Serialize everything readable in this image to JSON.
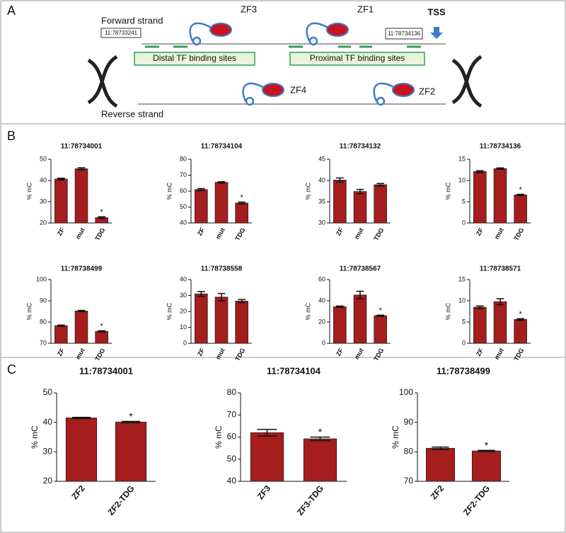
{
  "panels": [
    "A",
    "B",
    "C"
  ],
  "diagram": {
    "forward_strand": "Forward strand",
    "reverse_strand": "Reverse strand",
    "coord_left": "11:78733241",
    "coord_right": "11:78734136",
    "tss": "TSS",
    "distal": "Distal TF binding sites",
    "proximal": "Proximal TF binding sites",
    "proteins": [
      "ZF3",
      "ZF1",
      "ZF4",
      "ZF2"
    ]
  },
  "chart_data": [
    {
      "type": "bar",
      "title": "11:78734001",
      "ylabel": "% mC",
      "color": "#a51d1d",
      "categories": [
        "ZF",
        "mut",
        "TDG"
      ],
      "values": [
        40.7,
        45.5,
        22.5
      ],
      "errors": [
        0.4,
        0.5,
        0.4
      ],
      "significance": [
        null,
        null,
        "*"
      ],
      "ylim": [
        20,
        50
      ],
      "yticks": [
        20,
        30,
        40,
        50
      ]
    },
    {
      "type": "bar",
      "title": "11:78734104",
      "ylabel": "% mC",
      "color": "#a51d1d",
      "categories": [
        "ZF",
        "mut",
        "TDG"
      ],
      "values": [
        61,
        65.5,
        52.5
      ],
      "errors": [
        0.6,
        0.4,
        0.6
      ],
      "significance": [
        null,
        null,
        "*"
      ],
      "ylim": [
        40,
        80
      ],
      "yticks": [
        40,
        50,
        60,
        70,
        80
      ]
    },
    {
      "type": "bar",
      "title": "11:78734132",
      "ylabel": "% mC",
      "color": "#a51d1d",
      "categories": [
        "ZF",
        "mut",
        "TDG"
      ],
      "values": [
        40.1,
        37.4,
        39
      ],
      "errors": [
        0.5,
        0.5,
        0.3
      ],
      "ylim": [
        30,
        45
      ],
      "yticks": [
        30,
        35,
        40,
        45
      ]
    },
    {
      "type": "bar",
      "title": "11:78734136",
      "ylabel": "% mC",
      "color": "#a51d1d",
      "categories": [
        "ZF",
        "mut",
        "TDG"
      ],
      "values": [
        12.1,
        12.8,
        6.6
      ],
      "errors": [
        0.2,
        0.15,
        0.15
      ],
      "significance": [
        null,
        null,
        "*"
      ],
      "ylim": [
        0,
        15
      ],
      "yticks": [
        0,
        5,
        10,
        15
      ]
    },
    {
      "type": "bar",
      "title": "11:78738499",
      "ylabel": "% mC",
      "color": "#a51d1d",
      "categories": [
        "ZF",
        "mut",
        "TDG"
      ],
      "values": [
        78.3,
        85.2,
        75.6
      ],
      "errors": [
        0.3,
        0.3,
        0.3
      ],
      "significance": [
        null,
        null,
        "*"
      ],
      "ylim": [
        70,
        100
      ],
      "yticks": [
        70,
        80,
        90,
        100
      ]
    },
    {
      "type": "bar",
      "title": "11:78738558",
      "ylabel": "% mC",
      "color": "#a51d1d",
      "categories": [
        "ZF",
        "mut",
        "TDG"
      ],
      "values": [
        31,
        29,
        26.5
      ],
      "errors": [
        1.5,
        2.3,
        1
      ],
      "ylim": [
        0,
        40
      ],
      "yticks": [
        0,
        10,
        20,
        30,
        40
      ]
    },
    {
      "type": "bar",
      "title": "11:78738567",
      "ylabel": "% mC",
      "color": "#a51d1d",
      "categories": [
        "ZF",
        "mut",
        "TDG"
      ],
      "values": [
        34.5,
        45.5,
        26
      ],
      "errors": [
        0.6,
        3.5,
        0.5
      ],
      "significance": [
        null,
        null,
        "*"
      ],
      "ylim": [
        0,
        60
      ],
      "yticks": [
        0,
        20,
        40,
        60
      ]
    },
    {
      "type": "bar",
      "title": "11:78738571",
      "ylabel": "% mC",
      "color": "#a51d1d",
      "categories": [
        "ZF",
        "mut",
        "TDG"
      ],
      "values": [
        8.5,
        9.8,
        5.6
      ],
      "errors": [
        0.3,
        0.7,
        0.2
      ],
      "significance": [
        null,
        null,
        "*"
      ],
      "ylim": [
        0,
        15
      ],
      "yticks": [
        0,
        5,
        10,
        15
      ]
    },
    {
      "type": "bar",
      "title": "11:78734001",
      "ylabel": "% mC",
      "color": "#a51d1d",
      "categories": [
        "ZF2",
        "ZF2-TDG"
      ],
      "values": [
        41.5,
        40.1
      ],
      "errors": [
        0.2,
        0.2
      ],
      "significance": [
        null,
        "*"
      ],
      "ylim": [
        20,
        50
      ],
      "yticks": [
        20,
        30,
        40,
        50
      ]
    },
    {
      "type": "bar",
      "title": "11:78734104",
      "ylabel": "% mC",
      "color": "#a51d1d",
      "categories": [
        "ZF3",
        "ZF3-TDG"
      ],
      "values": [
        62,
        59.2
      ],
      "errors": [
        1.5,
        0.8
      ],
      "significance": [
        null,
        "*"
      ],
      "ylim": [
        40,
        80
      ],
      "yticks": [
        40,
        50,
        60,
        70,
        80
      ]
    },
    {
      "type": "bar",
      "title": "11:78738499",
      "ylabel": "% mC",
      "color": "#a51d1d",
      "categories": [
        "ZF2",
        "ZF2-TDG"
      ],
      "values": [
        81.2,
        80.3
      ],
      "errors": [
        0.4,
        0.2
      ],
      "significance": [
        null,
        "*"
      ],
      "ylim": [
        70,
        100
      ],
      "yticks": [
        70,
        80,
        90,
        100
      ]
    }
  ]
}
